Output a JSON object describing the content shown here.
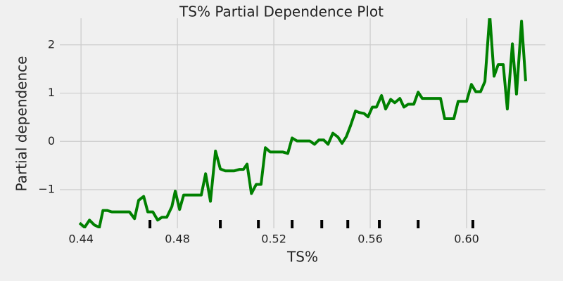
{
  "chart_data": {
    "type": "line",
    "title": "TS% Partial Dependence Plot",
    "x_label": "TS%",
    "y_label": "Partial dependence",
    "grid": true,
    "x": [
      0.4394,
      0.4415,
      0.4435,
      0.4455,
      0.4476,
      0.4491,
      0.4508,
      0.4528,
      0.4549,
      0.4601,
      0.4622,
      0.4639,
      0.466,
      0.4677,
      0.4698,
      0.4718,
      0.4736,
      0.4756,
      0.4777,
      0.4791,
      0.4809,
      0.4826,
      0.4899,
      0.4917,
      0.4937,
      0.4958,
      0.4978,
      0.4999,
      0.5036,
      0.5057,
      0.5074,
      0.5089,
      0.5107,
      0.5127,
      0.5147,
      0.5165,
      0.5185,
      0.5238,
      0.5258,
      0.5276,
      0.5296,
      0.5349,
      0.5369,
      0.5387,
      0.5407,
      0.5425,
      0.5445,
      0.5466,
      0.5483,
      0.5501,
      0.5518,
      0.5539,
      0.5553,
      0.5574,
      0.5591,
      0.5609,
      0.5626,
      0.5647,
      0.5664,
      0.5685,
      0.5702,
      0.5723,
      0.574,
      0.5758,
      0.5781,
      0.5799,
      0.5816,
      0.5892,
      0.5909,
      0.5947,
      0.5965,
      0.6,
      0.602,
      0.6038,
      0.6058,
      0.6076,
      0.6096,
      0.6114,
      0.6131,
      0.6152,
      0.6169,
      0.619,
      0.6207,
      0.6228,
      0.6245
    ],
    "series": [
      {
        "color": "#008000",
        "values": [
          -1.69,
          -1.78,
          -1.63,
          -1.73,
          -1.78,
          -1.43,
          -1.43,
          -1.46,
          -1.46,
          -1.46,
          -1.6,
          -1.22,
          -1.14,
          -1.46,
          -1.46,
          -1.63,
          -1.57,
          -1.57,
          -1.35,
          -1.03,
          -1.41,
          -1.11,
          -1.11,
          -0.67,
          -1.24,
          -0.2,
          -0.57,
          -0.61,
          -0.61,
          -0.58,
          -0.58,
          -0.47,
          -1.08,
          -0.89,
          -0.89,
          -0.13,
          -0.22,
          -0.22,
          -0.25,
          0.07,
          0.01,
          0.01,
          -0.06,
          0.03,
          0.03,
          -0.06,
          0.17,
          0.09,
          -0.04,
          0.1,
          0.32,
          0.63,
          0.6,
          0.58,
          0.51,
          0.71,
          0.71,
          0.95,
          0.67,
          0.87,
          0.8,
          0.89,
          0.71,
          0.77,
          0.77,
          1.02,
          0.89,
          0.89,
          0.47,
          0.47,
          0.83,
          0.83,
          1.18,
          1.03,
          1.03,
          1.24,
          2.62,
          1.35,
          1.59,
          1.59,
          0.67,
          2.02,
          0.98,
          2.49,
          1.25
        ]
      }
    ],
    "deciles": [
      0.4686,
      0.4978,
      0.5136,
      0.5276,
      0.5399,
      0.5507,
      0.5638,
      0.5799,
      0.6026
    ],
    "deciles_color": "#000000",
    "xlim": [
      0.4312,
      0.6327
    ],
    "ylim": [
      -1.8,
      2.55
    ],
    "xticks": [
      0.44,
      0.48,
      0.52,
      0.56,
      {
        "value": 0.6,
        "label": "0.60"
      }
    ],
    "yticks": [
      {
        "value": -1,
        "label": "−1"
      },
      0,
      1,
      2
    ]
  }
}
